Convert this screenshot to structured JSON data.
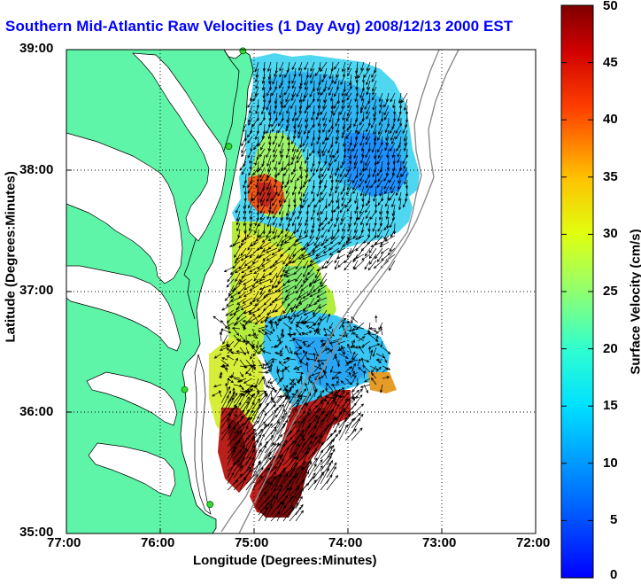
{
  "title": "Southern Mid-Atlantic Raw Velocities (1 Day Avg) 2008/12/13 2000 EST",
  "map": {
    "xlabel": "Longitude (Degrees:Minutes)",
    "ylabel": "Latitude (Degrees:Minutes)",
    "lon_ticks": [
      "77:00",
      "76:00",
      "75:00",
      "74:00",
      "73:00",
      "72:00"
    ],
    "lat_ticks": [
      "39:00",
      "38:00",
      "37:00",
      "36:00",
      "35:00"
    ],
    "lon_range": [
      -77,
      -72
    ],
    "lat_range": [
      35,
      39
    ],
    "land_color": "#5ef5a8",
    "water_color": "#ffffff",
    "grid": "dotted"
  },
  "colorbar": {
    "label": "Surface Velocity (cm/s)",
    "ticks": [
      "50",
      "45",
      "40",
      "35",
      "30",
      "25",
      "20",
      "15",
      "10",
      "5",
      "0"
    ],
    "range": [
      0,
      50
    ],
    "colormap": "jet"
  },
  "stations": [
    {
      "name": "station",
      "lon": -75.12,
      "lat": 38.99
    },
    {
      "name": "station",
      "lon": -75.27,
      "lat": 38.2
    },
    {
      "name": "station",
      "lon": -75.74,
      "lat": 36.19
    },
    {
      "name": "station",
      "lon": -75.47,
      "lat": 35.24
    }
  ]
}
